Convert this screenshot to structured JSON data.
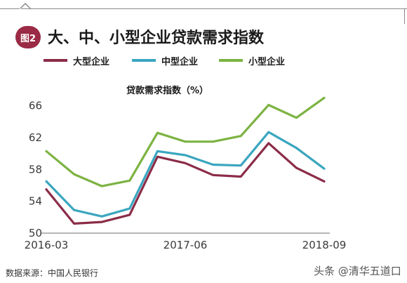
{
  "figure": {
    "badge": "图2",
    "title": "大、中、小型企业贷款需求指数",
    "source": "数据来源：中国人民银行",
    "watermark": "头条 @清华五道口"
  },
  "chart_data": {
    "type": "line",
    "title": "大、中、小型企业贷款需求指数",
    "ylabel": "贷款需求指数（%）",
    "xlabel": "",
    "x": [
      "2016-03",
      "2016-06",
      "2016-09",
      "2016-12",
      "2017-03",
      "2017-06",
      "2017-09",
      "2017-12",
      "2018-03",
      "2018-06",
      "2018-09"
    ],
    "x_tick_labels": [
      "2016-03",
      "2017-06",
      "2018-09"
    ],
    "x_tick_indices": [
      0,
      5,
      10
    ],
    "ylim": [
      50,
      68
    ],
    "yticks": [
      50,
      54,
      58,
      62,
      66
    ],
    "grid": false,
    "legend_position": "top",
    "series": [
      {
        "name": "大型企业",
        "color": "#8b2c48",
        "values": [
          55.5,
          51.2,
          51.4,
          52.3,
          59.6,
          58.8,
          57.3,
          57.1,
          61.3,
          58.2,
          56.5
        ]
      },
      {
        "name": "中型企业",
        "color": "#3aa6bf",
        "values": [
          56.5,
          52.9,
          52.1,
          53.1,
          60.3,
          59.8,
          58.6,
          58.5,
          62.7,
          60.7,
          58.1
        ]
      },
      {
        "name": "小型企业",
        "color": "#7cb342",
        "values": [
          60.3,
          57.4,
          55.9,
          56.6,
          62.6,
          61.5,
          61.5,
          62.2,
          66.1,
          64.5,
          67.0
        ]
      }
    ]
  }
}
